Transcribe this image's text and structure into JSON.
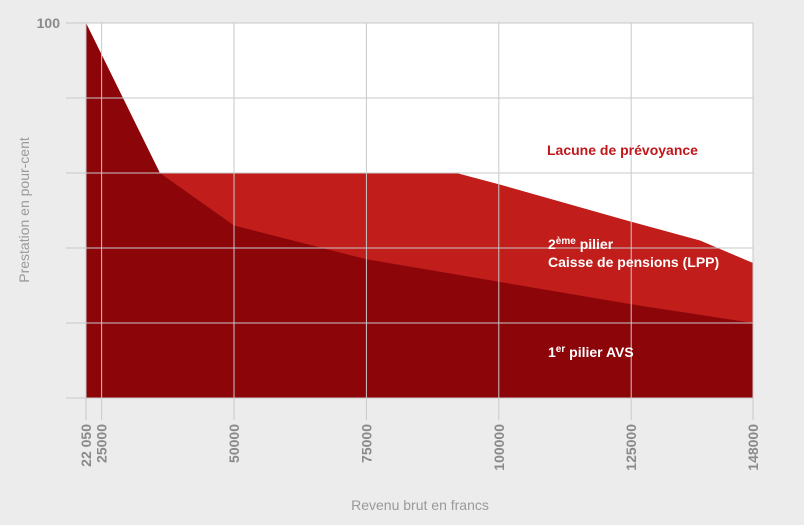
{
  "chart_data": {
    "type": "area",
    "title": "",
    "xlabel": "Revenu brut en francs",
    "ylabel": "Prestation en pour-cent",
    "xlim": [
      22050,
      148000
    ],
    "ylim": [
      0,
      100
    ],
    "x_ticks": [
      "22 050",
      "25000",
      "50000",
      "75000",
      "100000",
      "125000",
      "148000"
    ],
    "x_tick_values": [
      22050,
      25000,
      50000,
      75000,
      100000,
      125000,
      148000
    ],
    "y_ticks": [
      "100"
    ],
    "y_tick_values": [
      100
    ],
    "grid": true,
    "series": [
      {
        "key": "avs",
        "color": "#8c0509",
        "x": [
          22050,
          36000,
          50000,
          75000,
          100000,
          125000,
          148000
        ],
        "values": [
          100,
          60,
          46,
          37,
          31,
          25,
          20
        ]
      },
      {
        "key": "lpp",
        "color": "#c01d1b",
        "x": [
          22050,
          36000,
          92000,
          100000,
          125000,
          138000,
          148000
        ],
        "values": [
          100,
          60,
          60,
          57,
          47,
          42,
          36
        ]
      }
    ],
    "annotations": {
      "lacune": "Lacune de prévoyance",
      "pilier2_num": "2",
      "pilier2_sup": "ème",
      "pilier2_word": " pilier",
      "pilier2_line2": "Caisse de pensions (LPP)",
      "pilier1_num": "1",
      "pilier1_sup": "er",
      "pilier1_word": " pilier AVS"
    }
  }
}
